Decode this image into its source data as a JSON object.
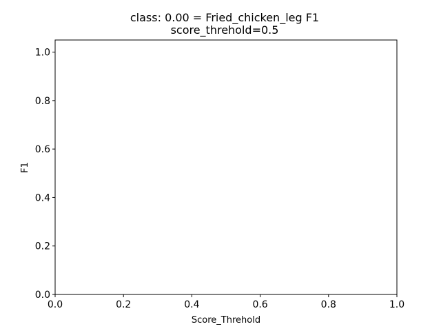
{
  "chart_data": {
    "type": "line",
    "title": "class: 0.00 = Fried_chicken_leg F1",
    "subtitle": "score_threhold=0.5",
    "xlabel": "Score_Threhold",
    "ylabel": "F1",
    "xlim": [
      0.0,
      1.0
    ],
    "ylim": [
      0.0,
      1.05
    ],
    "x_ticks": [
      0.0,
      0.2,
      0.4,
      0.6,
      0.8,
      1.0
    ],
    "x_tick_labels": [
      "0.0",
      "0.2",
      "0.4",
      "0.6",
      "0.8",
      "1.0"
    ],
    "y_ticks": [
      0.0,
      0.2,
      0.4,
      0.6,
      0.8,
      1.0
    ],
    "y_tick_labels": [
      "0.0",
      "0.2",
      "0.4",
      "0.6",
      "0.8",
      "1.0"
    ],
    "grid": false,
    "series": [
      {
        "x": [],
        "y": []
      }
    ]
  }
}
